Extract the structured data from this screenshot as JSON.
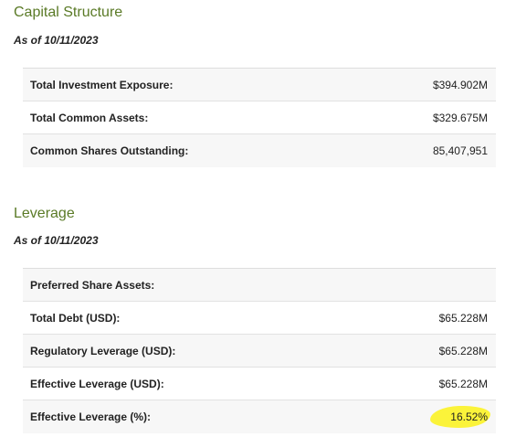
{
  "capital_structure": {
    "title": "Capital Structure",
    "as_of": "As of 10/11/2023",
    "rows": [
      {
        "label": "Total Investment Exposure:",
        "value": "$394.902M"
      },
      {
        "label": "Total Common Assets:",
        "value": "$329.675M"
      },
      {
        "label": "Common Shares Outstanding:",
        "value": "85,407,951"
      }
    ]
  },
  "leverage": {
    "title": "Leverage",
    "as_of": "As of 10/11/2023",
    "rows": [
      {
        "label": "Preferred Share Assets:",
        "value": ""
      },
      {
        "label": "Total Debt (USD):",
        "value": "$65.228M"
      },
      {
        "label": "Regulatory Leverage (USD):",
        "value": "$65.228M"
      },
      {
        "label": "Effective Leverage (USD):",
        "value": "$65.228M"
      },
      {
        "label": "Effective Leverage (%):",
        "value": "16.52%"
      }
    ]
  },
  "colors": {
    "section_title": "#5a7a26",
    "highlight": "#fbf33a"
  }
}
